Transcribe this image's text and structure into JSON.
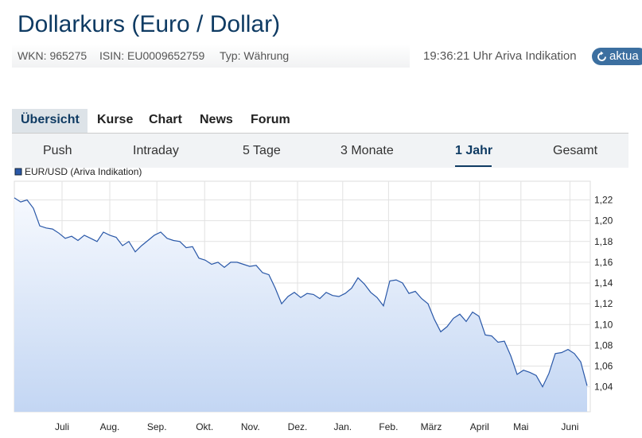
{
  "header": {
    "title": "Dollarkurs (Euro / Dollar)",
    "wkn": "WKN: 965275",
    "isin": "ISIN: EU0009652759",
    "typ": "Typ: Währung",
    "timestamp": "19:36:21 Uhr Ariva Indikation",
    "button": "aktua"
  },
  "tabs": [
    "Übersicht",
    "Kurse",
    "Chart",
    "News",
    "Forum"
  ],
  "subtabs": [
    "Push",
    "Intraday",
    "5 Tage",
    "3 Monate",
    "1 Jahr",
    "Gesamt"
  ],
  "chart_data": {
    "type": "area",
    "series": [
      {
        "name": "EUR/USD (Ariva Indikation)",
        "color": "#2a58a8",
        "values": [
          1.222,
          1.218,
          1.22,
          1.212,
          1.195,
          1.193,
          1.192,
          1.188,
          1.183,
          1.185,
          1.181,
          1.186,
          1.183,
          1.18,
          1.189,
          1.186,
          1.184,
          1.176,
          1.18,
          1.17,
          1.176,
          1.181,
          1.186,
          1.189,
          1.183,
          1.181,
          1.18,
          1.174,
          1.175,
          1.164,
          1.162,
          1.158,
          1.16,
          1.155,
          1.16,
          1.16,
          1.158,
          1.156,
          1.157,
          1.15,
          1.148,
          1.135,
          1.12,
          1.127,
          1.131,
          1.126,
          1.13,
          1.129,
          1.125,
          1.131,
          1.128,
          1.127,
          1.13,
          1.135,
          1.145,
          1.139,
          1.131,
          1.126,
          1.118,
          1.142,
          1.143,
          1.14,
          1.13,
          1.132,
          1.125,
          1.12,
          1.105,
          1.093,
          1.098,
          1.106,
          1.11,
          1.103,
          1.112,
          1.108,
          1.09,
          1.089,
          1.083,
          1.084,
          1.07,
          1.052,
          1.056,
          1.054,
          1.051,
          1.04,
          1.053,
          1.072,
          1.073,
          1.076,
          1.072,
          1.064,
          1.041
        ]
      }
    ],
    "xlim": [
      0,
      90.5
    ],
    "xticks": [
      {
        "value": 7.5,
        "label": "Juli"
      },
      {
        "value": 15,
        "label": "Aug."
      },
      {
        "value": 22.4,
        "label": "Sep."
      },
      {
        "value": 29.9,
        "label": "Okt."
      },
      {
        "value": 37.1,
        "label": "Nov."
      },
      {
        "value": 44.5,
        "label": "Dez."
      },
      {
        "value": 51.6,
        "label": "Jan."
      },
      {
        "value": 58.8,
        "label": "Feb."
      },
      {
        "value": 65.5,
        "label": "März"
      },
      {
        "value": 73.1,
        "label": "April"
      },
      {
        "value": 79.6,
        "label": "Mai"
      },
      {
        "value": 87.3,
        "label": "Juni"
      }
    ],
    "ylim": [
      1.016,
      1.238
    ],
    "yticks": [
      {
        "value": 1.04,
        "label": "1,04"
      },
      {
        "value": 1.06,
        "label": "1,06"
      },
      {
        "value": 1.08,
        "label": "1,08"
      },
      {
        "value": 1.1,
        "label": "1,10"
      },
      {
        "value": 1.12,
        "label": "1,12"
      },
      {
        "value": 1.14,
        "label": "1,14"
      },
      {
        "value": 1.16,
        "label": "1,16"
      },
      {
        "value": 1.18,
        "label": "1,18"
      },
      {
        "value": 1.2,
        "label": "1,20"
      },
      {
        "value": 1.22,
        "label": "1,22"
      }
    ],
    "grid": true
  }
}
